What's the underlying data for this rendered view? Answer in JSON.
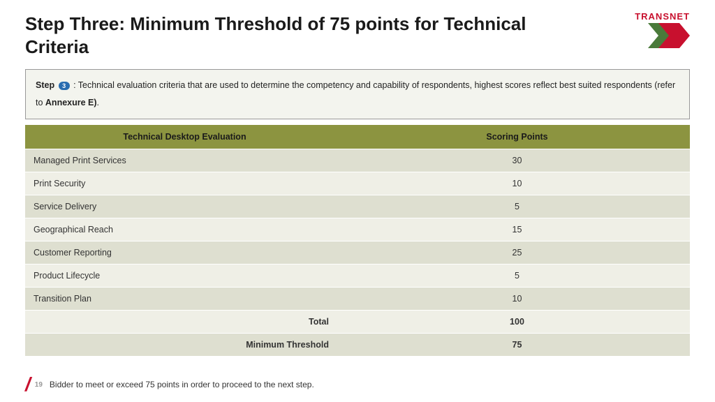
{
  "title": "Step Three: Minimum Threshold of 75 points for Technical Criteria",
  "brand": {
    "name": "TRANSNET"
  },
  "info": {
    "step_label": "Step",
    "step_num": "3",
    "text_after": " : Technical evaluation criteria that are used to determine the competency and capability of respondents, highest scores reflect best suited respondents (refer to ",
    "annex": "Annexure E)",
    "period": "."
  },
  "table": {
    "headers": [
      "Technical Desktop Evaluation",
      "Scoring  Points"
    ],
    "rows": [
      {
        "label": "Managed Print Services",
        "points": "30"
      },
      {
        "label": "Print Security",
        "points": "10"
      },
      {
        "label": "Service Delivery",
        "points": "5"
      },
      {
        "label": "Geographical Reach",
        "points": "15"
      },
      {
        "label": "Customer Reporting",
        "points": "25"
      },
      {
        "label": "Product Lifecycle",
        "points": "5"
      },
      {
        "label": "Transition Plan",
        "points": "10"
      }
    ],
    "total_label": "Total",
    "total_value": "100",
    "threshold_label": "Minimum Threshold",
    "threshold_value": "75"
  },
  "footer": {
    "page": "19",
    "note": "Bidder to meet or exceed 75 points in order to proceed to the next step."
  },
  "colors": {
    "brand_red": "#c8102e",
    "header_green": "#8c9440",
    "row_dark": "#dedfd0",
    "row_light": "#efefe6",
    "box_bg": "#f3f4ee"
  }
}
